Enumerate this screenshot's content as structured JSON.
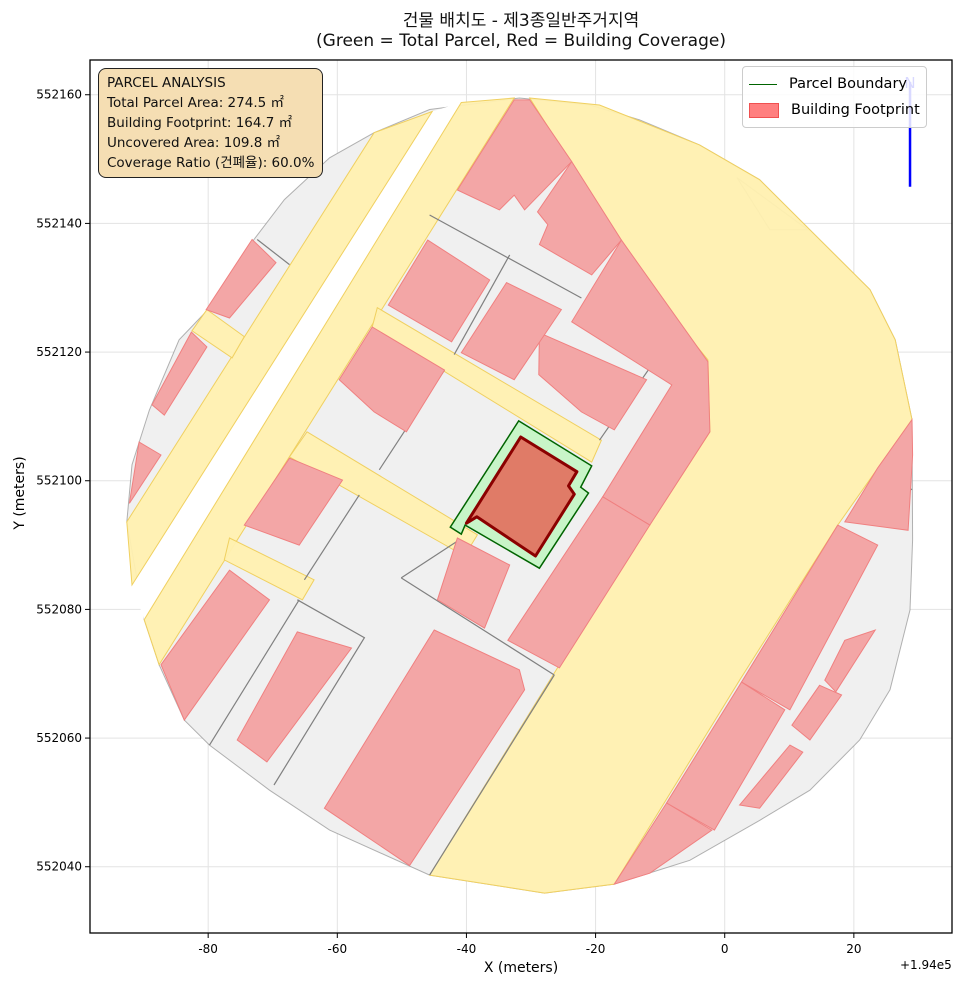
{
  "chart_data": {
    "type": "map",
    "title": "건물 배치도 - 제3종일반주거지역",
    "subtitle": "(Green = Total Parcel, Red = Building Coverage)",
    "xlabel": "X (meters)",
    "ylabel": "Y (meters)",
    "x_offset_label": "+1.94e5",
    "xlim": [
      -98.3,
      35.2
    ],
    "ylim": [
      552029.7,
      552165.4
    ],
    "xticks": [
      -80,
      -60,
      -40,
      -20,
      0,
      20
    ],
    "yticks": [
      552040,
      552060,
      552080,
      552100,
      552120,
      552140,
      552160
    ],
    "grid": true,
    "legend": {
      "placement": "top-right",
      "entries": [
        "Parcel Boundary",
        "Building Footprint"
      ]
    },
    "info_box": {
      "heading": "PARCEL ANALYSIS",
      "lines": [
        "Total Parcel Area: 274.5 ㎡",
        "Building Footprint: 164.7 ㎡",
        "Uncovered Area: 109.8 ㎡",
        "Coverage Ratio (건폐율): 60.0%"
      ]
    },
    "north_arrow": {
      "label": "N",
      "x": 28.7,
      "y_from": 552145.7,
      "y_to": 552162
    },
    "colors": {
      "lot": "#f0f0f0",
      "lot_edge": "#808080",
      "road": "#fff0b0",
      "road_edge": "#f0d060",
      "building": "#f3a6a6",
      "building_edge": "#f08080",
      "parcel": "#c8f5c8",
      "parcel_edge": "#006400",
      "target": "#e07b67",
      "target_edge": "#8b0000",
      "arrow": "#0000ff"
    },
    "lots": [
      [
        [
          -54.3,
          552154.1
        ],
        [
          -61.2,
          552150.2
        ],
        [
          -68.2,
          552143.7
        ],
        [
          -72.9,
          552137.5
        ],
        [
          -80.3,
          552126.3
        ],
        [
          -84.5,
          552121.9
        ],
        [
          -89.1,
          552111.0
        ],
        [
          -91.8,
          552102.5
        ],
        [
          -92.6,
          552093.6
        ],
        [
          -89.9,
          552078.4
        ],
        [
          -87.6,
          552071.4
        ],
        [
          -83.7,
          552062.8
        ],
        [
          -79.8,
          552058.9
        ],
        [
          -70.5,
          552051.9
        ],
        [
          -61.2,
          552045.7
        ],
        [
          -45.7,
          552038.7
        ],
        [
          -27.9,
          552035.9
        ],
        [
          -17.1,
          552037.3
        ],
        [
          -5.4,
          552041.0
        ],
        [
          5.4,
          552047.2
        ],
        [
          13.2,
          552051.9
        ],
        [
          20.9,
          552059.7
        ],
        [
          25.6,
          552067.5
        ],
        [
          28.7,
          552079.9
        ],
        [
          29.1,
          552090.8
        ],
        [
          29.0,
          552109.5
        ],
        [
          26.4,
          552121.9
        ],
        [
          22.5,
          552129.7
        ],
        [
          13.2,
          552139.0
        ],
        [
          5.4,
          552146.8
        ],
        [
          -3.9,
          552152.2
        ],
        [
          -13.2,
          552156.1
        ],
        [
          -20.9,
          552158.4
        ],
        [
          -31.8,
          552159.5
        ],
        [
          -45.7,
          552157.7
        ]
      ],
      [
        [
          1.9,
          552147.1
        ],
        [
          7.0,
          552139.0
        ],
        [
          12.9,
          552139.0
        ]
      ]
    ],
    "gap": [
      [
        -45.3,
        552157.4
      ],
      [
        -40.8,
        552158.8
      ],
      [
        -89.9,
        552078.4
      ],
      [
        -91.8,
        552083.8
      ]
    ],
    "roads": [
      [
        [
          -54.3,
          552154.1
        ],
        [
          -45.3,
          552157.4
        ],
        [
          -91.8,
          552083.8
        ],
        [
          -92.6,
          552093.6
        ]
      ],
      [
        [
          -40.8,
          552158.8
        ],
        [
          -32.6,
          552159.5
        ],
        [
          -87.6,
          552071.4
        ],
        [
          -89.9,
          552078.4
        ]
      ],
      [
        [
          -30.2,
          552159.5
        ],
        [
          -19.4,
          552158.4
        ],
        [
          -3.9,
          552152.2
        ],
        [
          5.4,
          552146.8
        ],
        [
          13.2,
          552139.0
        ],
        [
          22.5,
          552129.7
        ],
        [
          26.4,
          552121.9
        ],
        [
          29.0,
          552109.5
        ],
        [
          17.5,
          552093.1
        ],
        [
          2.3,
          552069.0
        ],
        [
          -17.1,
          552037.3
        ],
        [
          -27.9,
          552035.9
        ],
        [
          -45.7,
          552038.7
        ],
        [
          -25.6,
          552071.4
        ],
        [
          -2.3,
          552107.6
        ],
        [
          -2.6,
          552118.8
        ],
        [
          -7.0,
          552124.2
        ],
        [
          -16.3,
          552137.4
        ]
      ],
      [
        [
          -53.8,
          552126.9
        ],
        [
          -19.1,
          552106.3
        ],
        [
          -20.6,
          552102.9
        ],
        [
          -54.6,
          552123.9
        ]
      ],
      [
        [
          -64.7,
          552107.6
        ],
        [
          -38.3,
          552091.6
        ],
        [
          -40.3,
          552088.3
        ],
        [
          -67.4,
          552103.7
        ]
      ],
      [
        [
          -80.2,
          552126.6
        ],
        [
          -74.4,
          552122.4
        ],
        [
          -76.3,
          552119.1
        ],
        [
          -82.5,
          552123.3
        ]
      ],
      [
        [
          -76.7,
          552091.1
        ],
        [
          -63.6,
          552084.6
        ],
        [
          -65.4,
          552081.5
        ],
        [
          -77.5,
          552087.7
        ]
      ]
    ],
    "lot_lines": [
      [
        [
          -45.7,
          552141.3
        ],
        [
          -22.2,
          552128.4
        ]
      ],
      [
        [
          -33.3,
          552135.1
        ],
        [
          -41.9,
          552119.6
        ]
      ],
      [
        [
          -50.1,
          552084.9
        ],
        [
          -41.1,
          552090.8
        ]
      ],
      [
        [
          -50.1,
          552084.9
        ],
        [
          -26.4,
          552069.8
        ]
      ],
      [
        [
          -26.4,
          552069.8
        ],
        [
          -45.7,
          552038.7
        ]
      ],
      [
        [
          -66.2,
          552081.5
        ],
        [
          -55.8,
          552075.6
        ],
        [
          -69.8,
          552052.7
        ]
      ],
      [
        [
          -65.9,
          552081.5
        ],
        [
          -79.8,
          552058.9
        ]
      ],
      [
        [
          -72.4,
          552137.5
        ],
        [
          -67.4,
          552133.6
        ]
      ],
      [
        [
          -56.6,
          552097.8
        ],
        [
          -65.1,
          552084.6
        ]
      ],
      [
        [
          -43.4,
          552117.2
        ],
        [
          -53.5,
          552101.7
        ]
      ],
      [
        [
          -7.0,
          552124.2
        ],
        [
          -19.4,
          552106.3
        ]
      ],
      [
        [
          23.7,
          552101.5
        ],
        [
          29.0,
          552098.6
        ]
      ]
    ],
    "buildings": [
      [
        [
          -32.6,
          552159.2
        ],
        [
          -30.2,
          552159.2
        ],
        [
          -23.7,
          552149.6
        ],
        [
          -31.0,
          552142.1
        ],
        [
          -32.6,
          552144.4
        ],
        [
          -34.9,
          552142.1
        ],
        [
          -41.4,
          552145.2
        ]
      ],
      [
        [
          -23.7,
          552149.6
        ],
        [
          -16.0,
          552137.4
        ],
        [
          -20.6,
          552132.0
        ],
        [
          -28.7,
          552136.7
        ],
        [
          -27.4,
          552139.8
        ],
        [
          -29.0,
          552141.8
        ]
      ],
      [
        [
          -16.0,
          552137.4
        ],
        [
          -2.6,
          552118.5
        ],
        [
          -2.3,
          552107.6
        ],
        [
          -11.6,
          552093.1
        ],
        [
          -18.9,
          552097.5
        ],
        [
          -8.2,
          552114.9
        ],
        [
          -23.7,
          552124.7
        ]
      ],
      [
        [
          -28.7,
          552123.0
        ],
        [
          -12.1,
          552115.7
        ],
        [
          -17.1,
          552107.9
        ],
        [
          -22.2,
          552110.7
        ],
        [
          -28.8,
          552116.5
        ]
      ],
      [
        [
          -33.8,
          552130.8
        ],
        [
          -25.3,
          552126.6
        ],
        [
          -32.6,
          552115.7
        ],
        [
          -40.8,
          552119.9
        ]
      ],
      [
        [
          -46.0,
          552137.4
        ],
        [
          -36.4,
          552131.2
        ],
        [
          -42.3,
          552121.6
        ],
        [
          -52.1,
          552127.3
        ]
      ],
      [
        [
          -54.6,
          552123.9
        ],
        [
          -43.4,
          552117.2
        ],
        [
          -49.3,
          552107.6
        ],
        [
          -54.3,
          552110.7
        ],
        [
          -59.7,
          552115.7
        ]
      ],
      [
        [
          -73.2,
          552137.5
        ],
        [
          -69.5,
          552133.9
        ],
        [
          -76.7,
          552125.3
        ],
        [
          -80.3,
          552126.6
        ]
      ],
      [
        [
          -82.6,
          552123.1
        ],
        [
          -80.2,
          552120.8
        ],
        [
          -86.8,
          552110.2
        ],
        [
          -88.7,
          552111.8
        ]
      ],
      [
        [
          -90.7,
          552106.0
        ],
        [
          -87.3,
          552104.0
        ],
        [
          -92.2,
          552096.5
        ]
      ],
      [
        [
          -67.4,
          552103.5
        ],
        [
          -59.2,
          552100.1
        ],
        [
          -65.9,
          552090.0
        ],
        [
          -74.4,
          552093.1
        ]
      ],
      [
        [
          -76.7,
          552086.1
        ],
        [
          -70.5,
          552081.5
        ],
        [
          -83.7,
          552062.8
        ],
        [
          -87.3,
          552071.4
        ]
      ],
      [
        [
          -66.2,
          552076.5
        ],
        [
          -57.8,
          552074.0
        ],
        [
          -70.9,
          552056.3
        ],
        [
          -75.5,
          552059.7
        ]
      ],
      [
        [
          -45.0,
          552076.8
        ],
        [
          -31.8,
          552070.6
        ],
        [
          -31.0,
          552067.5
        ],
        [
          -48.8,
          552040.2
        ],
        [
          -62.0,
          552049.1
        ]
      ],
      [
        [
          -41.4,
          552091.1
        ],
        [
          -33.3,
          552086.9
        ],
        [
          -37.2,
          552077.1
        ],
        [
          -44.5,
          552081.5
        ]
      ],
      [
        [
          -18.9,
          552097.5
        ],
        [
          -11.6,
          552093.1
        ],
        [
          -25.6,
          552070.9
        ],
        [
          -33.6,
          552075.2
        ]
      ],
      [
        [
          17.5,
          552093.1
        ],
        [
          23.7,
          552090.0
        ],
        [
          10.1,
          552064.4
        ],
        [
          2.6,
          552068.7
        ]
      ],
      [
        [
          2.6,
          552068.7
        ],
        [
          9.3,
          552064.4
        ],
        [
          -1.6,
          552045.7
        ],
        [
          -9.0,
          552049.9
        ]
      ],
      [
        [
          -9.0,
          552049.9
        ],
        [
          -2.0,
          552045.7
        ],
        [
          -11.6,
          552039.0
        ],
        [
          -17.1,
          552037.3
        ]
      ],
      [
        [
          29.0,
          552109.5
        ],
        [
          29.1,
          552104.0
        ],
        [
          28.4,
          552092.3
        ],
        [
          18.6,
          552093.6
        ],
        [
          23.7,
          552102.0
        ]
      ],
      [
        [
          18.6,
          552075.2
        ],
        [
          23.3,
          552076.8
        ],
        [
          17.2,
          552067.2
        ],
        [
          15.5,
          552069.0
        ]
      ],
      [
        [
          14.7,
          552068.2
        ],
        [
          18.1,
          552066.7
        ],
        [
          13.2,
          552059.7
        ],
        [
          10.4,
          552062.0
        ]
      ],
      [
        [
          10.1,
          552058.9
        ],
        [
          12.1,
          552057.8
        ],
        [
          5.4,
          552049.1
        ],
        [
          2.3,
          552049.6
        ]
      ]
    ],
    "parcel": [
      [
        -31.9,
        552109.3
      ],
      [
        -20.6,
        552102.3
      ],
      [
        -22.3,
        552099.0
      ],
      [
        -21.1,
        552098.1
      ],
      [
        -28.7,
        552086.4
      ],
      [
        -40.2,
        552093.1
      ],
      [
        -40.8,
        552091.7
      ],
      [
        -42.5,
        552092.8
      ]
    ],
    "target_building": [
      [
        -31.6,
        552106.8
      ],
      [
        -22.9,
        552101.4
      ],
      [
        -24.2,
        552099.2
      ],
      [
        -23.3,
        552097.9
      ],
      [
        -29.3,
        552088.3
      ],
      [
        -38.4,
        552094.4
      ],
      [
        -40.0,
        552093.4
      ]
    ]
  }
}
